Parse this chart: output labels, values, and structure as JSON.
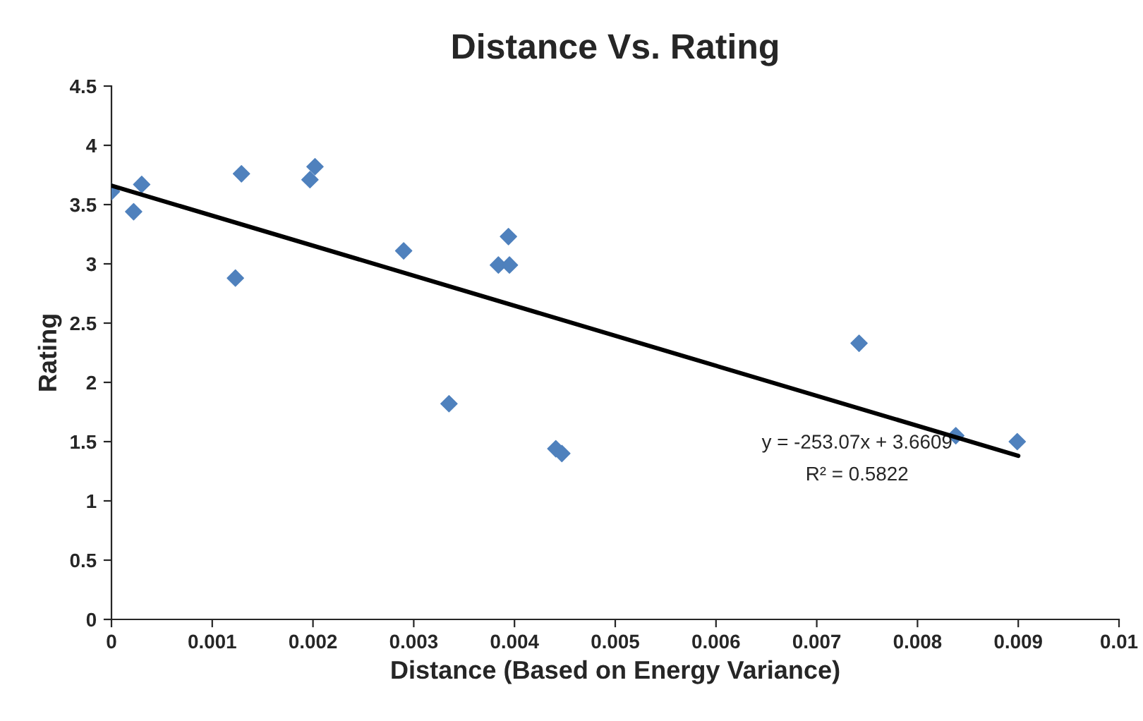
{
  "chart_data": {
    "type": "scatter",
    "title": "Distance Vs. Rating",
    "xlabel": "Distance (Based on Energy Variance)",
    "ylabel": "Rating",
    "series": [
      {
        "color": "#4f81bd",
        "marker": "diamond",
        "x": [
          0,
          0.00022,
          0.0003,
          0.00123,
          0.00129,
          0.00197,
          0.00202,
          0.0029,
          0.00335,
          0.00384,
          0.00394,
          0.00395,
          0.00441,
          0.00447,
          0.00742,
          0.00838,
          0.00899
        ],
        "values": [
          3.61,
          3.44,
          3.67,
          2.88,
          3.76,
          3.71,
          3.82,
          3.11,
          1.82,
          2.99,
          3.23,
          2.99,
          1.44,
          1.4,
          2.33,
          1.55,
          1.5
        ]
      },
      {
        "type": "line",
        "color": "#000000",
        "marker": "none",
        "line_style": "solid",
        "x": [
          0,
          0.009
        ],
        "values": [
          3.66,
          1.38
        ]
      }
    ],
    "annotations": [
      "y = -253.07x + 3.6609",
      "R² = 0.5822"
    ],
    "xlim": [
      0,
      0.01
    ],
    "xticks": [
      0,
      0.001,
      0.002,
      0.003,
      0.004,
      0.005,
      0.006,
      0.007,
      0.008,
      0.009,
      0.01
    ],
    "ylim": [
      0,
      4.5
    ],
    "yticks": [
      0,
      0.5,
      1,
      1.5,
      2,
      2.5,
      3,
      3.5,
      4,
      4.5
    ],
    "grid": false
  }
}
